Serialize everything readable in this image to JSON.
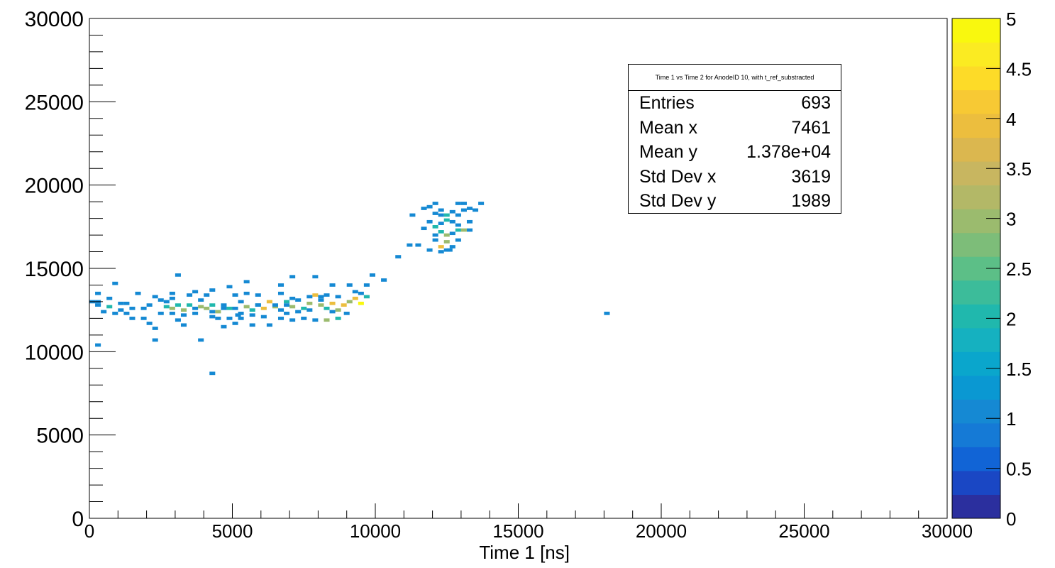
{
  "chart_data": {
    "type": "heatmap",
    "title": "",
    "xlabel": "Time 1 [ns]",
    "ylabel": "",
    "xlim": [
      0,
      30000
    ],
    "ylim": [
      0,
      30000
    ],
    "zlim": [
      0,
      5
    ],
    "bin_size": [
      200,
      200
    ],
    "x_ticks": [
      0,
      5000,
      10000,
      15000,
      20000,
      25000,
      30000
    ],
    "x_tick_labels": [
      "0",
      "5000",
      "10000",
      "15000",
      "20000",
      "25000",
      "30000"
    ],
    "y_ticks": [
      0,
      5000,
      10000,
      15000,
      20000,
      25000,
      30000
    ],
    "y_tick_labels": [
      "0",
      "5000",
      "10000",
      "15000",
      "20000",
      "25000",
      "30000"
    ],
    "z_ticks": [
      0,
      0.5,
      1,
      1.5,
      2,
      2.5,
      3,
      3.5,
      4,
      4.5,
      5
    ],
    "z_tick_labels": [
      "0",
      "0.5",
      "1",
      "1.5",
      "2",
      "2.5",
      "3",
      "3.5",
      "4",
      "4.5",
      "5"
    ],
    "palette": [
      "#2b2f9e",
      "#1a47c4",
      "#1164d6",
      "#157ad6",
      "#1589d3",
      "#0a98d2",
      "#0aa6cc",
      "#15b1c0",
      "#20b8ad",
      "#3cbc9a",
      "#5cbf87",
      "#7dbd79",
      "#9bbb6e",
      "#b3b867",
      "#c8b660",
      "#dbb74f",
      "#ecbe3e",
      "#f7c934",
      "#fddb28",
      "#fbeb22",
      "#f9f80e"
    ],
    "points": [
      [
        100,
        13000,
        1
      ],
      [
        300,
        13000,
        1
      ],
      [
        500,
        12400,
        1
      ],
      [
        700,
        12700,
        2
      ],
      [
        900,
        12300,
        1
      ],
      [
        1100,
        12500,
        1
      ],
      [
        1300,
        12300,
        1
      ],
      [
        1500,
        12000,
        1
      ],
      [
        1100,
        12900,
        1
      ],
      [
        700,
        13200,
        1
      ],
      [
        300,
        13500,
        1
      ],
      [
        900,
        14100,
        1
      ],
      [
        1900,
        12000,
        1
      ],
      [
        2100,
        11700,
        1
      ],
      [
        2300,
        11400,
        1
      ],
      [
        2300,
        10700,
        1
      ],
      [
        300,
        10400,
        1
      ],
      [
        3300,
        11600,
        1
      ],
      [
        3100,
        11900,
        1
      ],
      [
        3900,
        10700,
        1
      ],
      [
        4300,
        8700,
        1
      ],
      [
        1700,
        13500,
        1
      ],
      [
        2300,
        13300,
        1
      ],
      [
        2500,
        13100,
        1
      ],
      [
        2700,
        12700,
        2
      ],
      [
        2900,
        12600,
        3
      ],
      [
        3100,
        12800,
        2
      ],
      [
        3300,
        12500,
        3
      ],
      [
        3500,
        12800,
        2
      ],
      [
        3700,
        12600,
        1
      ],
      [
        3900,
        12700,
        3
      ],
      [
        4100,
        12600,
        3
      ],
      [
        4300,
        12800,
        2
      ],
      [
        4500,
        12400,
        3
      ],
      [
        4700,
        12600,
        1
      ],
      [
        4900,
        12600,
        2
      ],
      [
        5100,
        12600,
        1
      ],
      [
        5300,
        12300,
        1
      ],
      [
        5500,
        12700,
        3
      ],
      [
        5700,
        12500,
        2
      ],
      [
        5900,
        12800,
        1
      ],
      [
        6100,
        12600,
        4
      ],
      [
        6300,
        13000,
        4
      ],
      [
        6500,
        12700,
        3
      ],
      [
        6700,
        12500,
        1
      ],
      [
        6900,
        13000,
        2
      ],
      [
        7100,
        12700,
        3
      ],
      [
        7300,
        12400,
        1
      ],
      [
        7500,
        12600,
        2
      ],
      [
        7700,
        12900,
        3
      ],
      [
        7900,
        13400,
        4
      ],
      [
        8100,
        12800,
        3
      ],
      [
        8300,
        12600,
        2
      ],
      [
        8500,
        12900,
        4
      ],
      [
        8700,
        12500,
        3
      ],
      [
        8900,
        12800,
        4
      ],
      [
        9100,
        13000,
        3
      ],
      [
        9300,
        13200,
        4
      ],
      [
        9500,
        12900,
        5
      ],
      [
        9700,
        13300,
        2
      ],
      [
        8100,
        13300,
        1
      ],
      [
        8300,
        13400,
        1
      ],
      [
        9300,
        13600,
        1
      ],
      [
        1900,
        12600,
        1
      ],
      [
        2100,
        12800,
        1
      ],
      [
        2500,
        12300,
        1
      ],
      [
        2900,
        12300,
        1
      ],
      [
        3300,
        12200,
        1
      ],
      [
        3700,
        12300,
        1
      ],
      [
        4300,
        12100,
        1
      ],
      [
        4500,
        12000,
        1
      ],
      [
        4900,
        12000,
        1
      ],
      [
        5300,
        12000,
        1
      ],
      [
        5700,
        12200,
        1
      ],
      [
        6100,
        12100,
        1
      ],
      [
        6700,
        12000,
        1
      ],
      [
        6900,
        12300,
        1
      ],
      [
        7100,
        11900,
        1
      ],
      [
        7500,
        12000,
        1
      ],
      [
        7900,
        11900,
        1
      ],
      [
        8300,
        11900,
        3
      ],
      [
        8700,
        12000,
        2
      ],
      [
        9000,
        12300,
        1
      ],
      [
        5100,
        13400,
        1
      ],
      [
        5500,
        13500,
        1
      ],
      [
        5900,
        13400,
        1
      ],
      [
        6700,
        13500,
        1
      ],
      [
        7100,
        13200,
        1
      ],
      [
        7700,
        13300,
        1
      ],
      [
        8100,
        13100,
        1
      ],
      [
        8700,
        13300,
        1
      ],
      [
        6500,
        12800,
        1
      ],
      [
        4300,
        12400,
        1
      ],
      [
        4100,
        13400,
        1
      ],
      [
        3700,
        13600,
        1
      ],
      [
        4300,
        13700,
        1
      ],
      [
        2900,
        13500,
        1
      ],
      [
        3500,
        13400,
        1
      ],
      [
        4900,
        13900,
        1
      ],
      [
        5500,
        14200,
        1
      ],
      [
        6700,
        14000,
        1
      ],
      [
        7100,
        14500,
        1
      ],
      [
        7900,
        14500,
        1
      ],
      [
        8500,
        14000,
        1
      ],
      [
        9100,
        14000,
        1
      ],
      [
        9700,
        14000,
        1
      ],
      [
        10300,
        14300,
        1
      ],
      [
        9900,
        14600,
        1
      ],
      [
        3100,
        14600,
        1
      ],
      [
        2900,
        13200,
        1
      ],
      [
        5900,
        12800,
        1
      ],
      [
        4700,
        12800,
        1
      ],
      [
        5200,
        12200,
        1
      ],
      [
        5100,
        11700,
        1
      ],
      [
        5700,
        11600,
        1
      ],
      [
        6300,
        11600,
        1
      ],
      [
        4700,
        11500,
        1
      ],
      [
        1300,
        12900,
        1
      ],
      [
        1500,
        12600,
        1
      ],
      [
        300,
        12800,
        1
      ],
      [
        2700,
        13000,
        1
      ],
      [
        3900,
        13100,
        1
      ],
      [
        5300,
        13000,
        1
      ],
      [
        6900,
        12800,
        1
      ],
      [
        7300,
        13100,
        1
      ],
      [
        7700,
        12500,
        1
      ],
      [
        8500,
        12400,
        1
      ],
      [
        9500,
        13500,
        1
      ],
      [
        10800,
        15700,
        1
      ],
      [
        11200,
        16400,
        1
      ],
      [
        11500,
        16400,
        1
      ],
      [
        11900,
        16100,
        1
      ],
      [
        12100,
        16700,
        1
      ],
      [
        12300,
        16300,
        4
      ],
      [
        12500,
        16600,
        3
      ],
      [
        12700,
        16300,
        1
      ],
      [
        12900,
        16700,
        1
      ],
      [
        12100,
        17000,
        1
      ],
      [
        12300,
        17200,
        2
      ],
      [
        12500,
        17000,
        3
      ],
      [
        12700,
        17100,
        1
      ],
      [
        12900,
        17300,
        2
      ],
      [
        13100,
        17300,
        3
      ],
      [
        12100,
        17500,
        2
      ],
      [
        12300,
        17700,
        1
      ],
      [
        12500,
        17900,
        2
      ],
      [
        12700,
        17800,
        1
      ],
      [
        12900,
        17600,
        1
      ],
      [
        13300,
        17800,
        1
      ],
      [
        11900,
        17800,
        1
      ],
      [
        11700,
        17400,
        1
      ],
      [
        11300,
        18200,
        1
      ],
      [
        11900,
        18700,
        1
      ],
      [
        12100,
        18900,
        1
      ],
      [
        12300,
        18500,
        1
      ],
      [
        12500,
        18200,
        2
      ],
      [
        12700,
        18400,
        1
      ],
      [
        12900,
        18200,
        1
      ],
      [
        13100,
        18500,
        1
      ],
      [
        13300,
        18600,
        1
      ],
      [
        13500,
        18500,
        1
      ],
      [
        13100,
        18900,
        1
      ],
      [
        13700,
        18900,
        1
      ],
      [
        12900,
        18900,
        1
      ],
      [
        12300,
        18200,
        1
      ],
      [
        12100,
        18300,
        1
      ],
      [
        11700,
        18600,
        1
      ],
      [
        12600,
        16100,
        1
      ],
      [
        12500,
        16100,
        1
      ],
      [
        12300,
        16000,
        1
      ],
      [
        13300,
        17300,
        1
      ],
      [
        18100,
        12300,
        1
      ]
    ]
  },
  "stats_box": {
    "title": "Time 1 vs Time 2 for AnodeID 10, with t_ref_substracted",
    "entries_label": "Entries",
    "entries_value": "693",
    "mean_x_label": "Mean x",
    "mean_x_value": "7461",
    "mean_y_label": "Mean y",
    "mean_y_value": "1.378e+04",
    "std_x_label": "Std Dev x",
    "std_x_value": "3619",
    "std_y_label": "Std Dev y",
    "std_y_value": "1989"
  }
}
